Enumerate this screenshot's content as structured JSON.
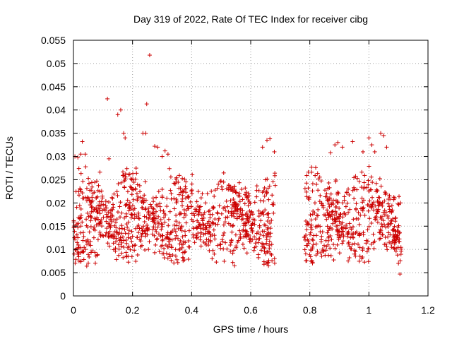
{
  "chart_data": {
    "type": "scatter",
    "title": "Day 319 of 2022, Rate Of TEC Index for receiver cibg",
    "xlabel": "GPS time / hours",
    "ylabel": "ROTI / TECUs",
    "xlim": [
      0,
      1.2
    ],
    "ylim": [
      0,
      0.055
    ],
    "xticks": [
      0,
      0.2,
      0.4,
      0.6,
      0.8,
      1,
      1.2
    ],
    "xtick_labels": [
      "0",
      "0.2",
      "0.4",
      "0.6",
      "0.8",
      "1",
      "1.2"
    ],
    "yticks": [
      0,
      0.005,
      0.01,
      0.015,
      0.02,
      0.025,
      0.03,
      0.035,
      0.04,
      0.045,
      0.05,
      0.055
    ],
    "ytick_labels": [
      "0",
      "0.005",
      "0.01",
      "0.015",
      "0.02",
      "0.025",
      "0.03",
      "0.035",
      "0.04",
      "0.045",
      "0.05",
      "0.055"
    ],
    "grid": true,
    "marker": "+",
    "color": "#cc0000",
    "series": [
      {
        "x_ranges": [
          [
            0.0,
            0.683
          ],
          [
            0.78,
            1.11
          ]
        ],
        "points": [
          [
            0.258,
            0.0518
          ],
          [
            0.115,
            0.0424
          ],
          [
            0.248,
            0.0413
          ],
          [
            0.16,
            0.04
          ],
          [
            0.15,
            0.039
          ],
          [
            0.17,
            0.035
          ],
          [
            0.175,
            0.034
          ],
          [
            0.235,
            0.035
          ],
          [
            0.245,
            0.035
          ],
          [
            0.03,
            0.0332
          ],
          [
            0.275,
            0.0322
          ],
          [
            0.285,
            0.032
          ],
          [
            0.31,
            0.0312
          ],
          [
            0.64,
            0.032
          ],
          [
            0.655,
            0.0335
          ],
          [
            0.665,
            0.0338
          ],
          [
            0.68,
            0.031
          ],
          [
            0.885,
            0.0325
          ],
          [
            0.895,
            0.033
          ],
          [
            0.945,
            0.0332
          ],
          [
            1.0,
            0.034
          ],
          [
            1.04,
            0.035
          ],
          [
            1.05,
            0.0345
          ],
          [
            1.02,
            0.031
          ],
          [
            0.045,
            0.0064
          ],
          [
            0.545,
            0.0065
          ],
          [
            0.645,
            0.0068
          ],
          [
            0.66,
            0.0065
          ],
          [
            1.105,
            0.0047
          ],
          [
            1.1,
            0.007
          ],
          [
            0.005,
            0.03
          ],
          [
            0.015,
            0.0298
          ],
          [
            0.025,
            0.0305
          ],
          [
            0.04,
            0.0305
          ],
          [
            0.12,
            0.0295
          ],
          [
            0.3,
            0.03
          ],
          [
            0.32,
            0.0305
          ],
          [
            0.87,
            0.0308
          ],
          [
            0.91,
            0.032
          ],
          [
            0.98,
            0.031
          ],
          [
            1.01,
            0.0325
          ],
          [
            1.06,
            0.032
          ]
        ],
        "density_note_free": true
      }
    ]
  }
}
